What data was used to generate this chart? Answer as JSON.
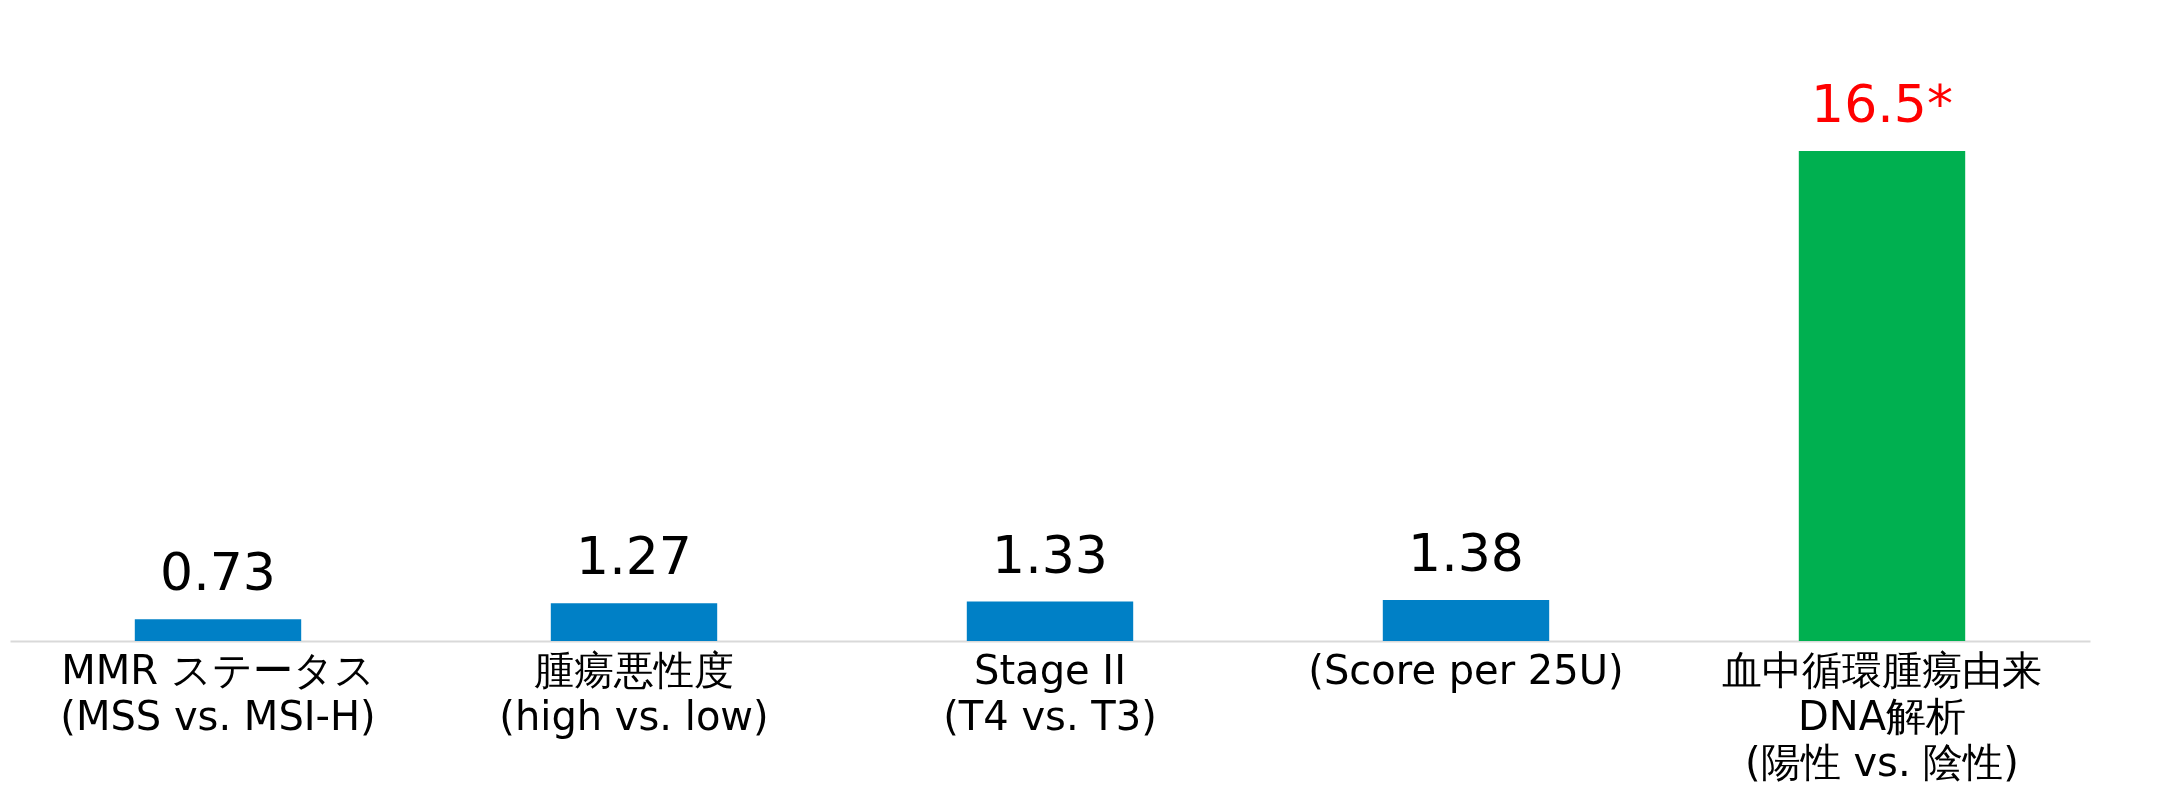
{
  "chart_data": {
    "type": "bar",
    "categories": [
      "MMR ステータス\n(MSS vs. MSI-H)",
      "腫瘍悪性度\n(high vs. low)",
      "Stage II\n(T4 vs. T3)",
      "(Score per 25U)",
      "血中循環腫瘍由来\nDNA解析\n(陽性 vs. 陰性)"
    ],
    "values": [
      0.73,
      1.27,
      1.33,
      1.38,
      16.5
    ],
    "colors": [
      "#0080c6",
      "#0080c6",
      "#0080c6",
      "#0080c6",
      "#00b050"
    ],
    "value_labels": [
      "0.73",
      "1.27",
      "1.33",
      "1.38",
      "16.5*"
    ],
    "grid": false
  }
}
